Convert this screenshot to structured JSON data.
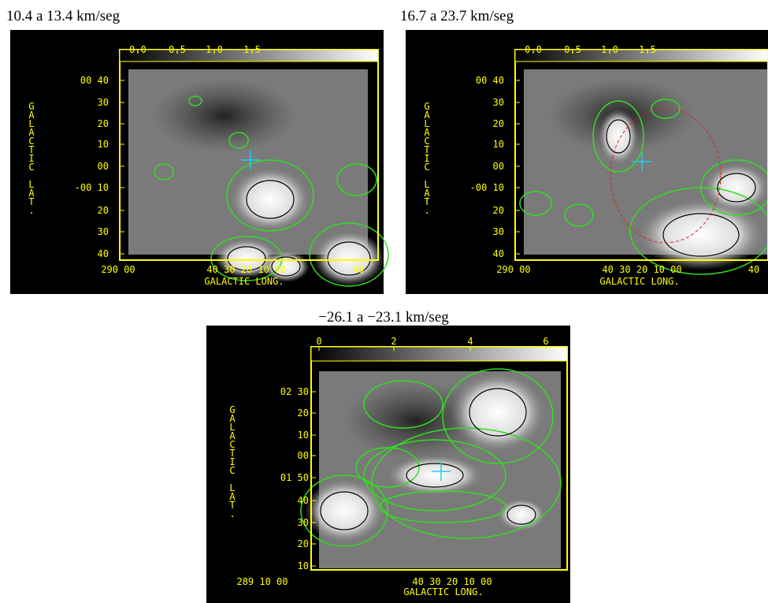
{
  "panels": [
    {
      "title": "10.4 a 13.4 km/seg",
      "colorbar_ticks": [
        "0.0",
        "0.5",
        "1.0",
        "1.5"
      ],
      "y_axis_label": "GALACTIC LAT.",
      "y_ticks": [
        "00 40",
        "30",
        "20",
        "10",
        "00",
        "-00 10",
        "20",
        "30",
        "40"
      ],
      "x_ticks": [
        "290 00",
        "40 30 20 10 00",
        "40"
      ],
      "x_axis_label": "GALACTIC LONG."
    },
    {
      "title": "16.7 a 23.7 km/seg",
      "colorbar_ticks": [
        "0.0",
        "0.5",
        "1.0",
        "1.5"
      ],
      "y_axis_label": "GALACTIC LAT.",
      "y_ticks": [
        "00 40",
        "30",
        "20",
        "10",
        "00",
        "-00 10",
        "20",
        "30",
        "40"
      ],
      "x_ticks": [
        "290 00",
        "40 30 20 10 00",
        "40"
      ],
      "x_axis_label": "GALACTIC LONG."
    },
    {
      "title": "−26.1 a −23.1 km/seg",
      "colorbar_ticks": [
        "0",
        "2",
        "4",
        "6"
      ],
      "y_axis_label": "GALACTIC LAT.",
      "y_ticks": [
        "02 30",
        "20",
        "10",
        "00",
        "01 50",
        "40",
        "30",
        "20",
        "10"
      ],
      "x_ticks": [
        "289 10 00",
        "40 30 20 10 00"
      ],
      "x_axis_label": "GALACTIC LONG."
    }
  ]
}
